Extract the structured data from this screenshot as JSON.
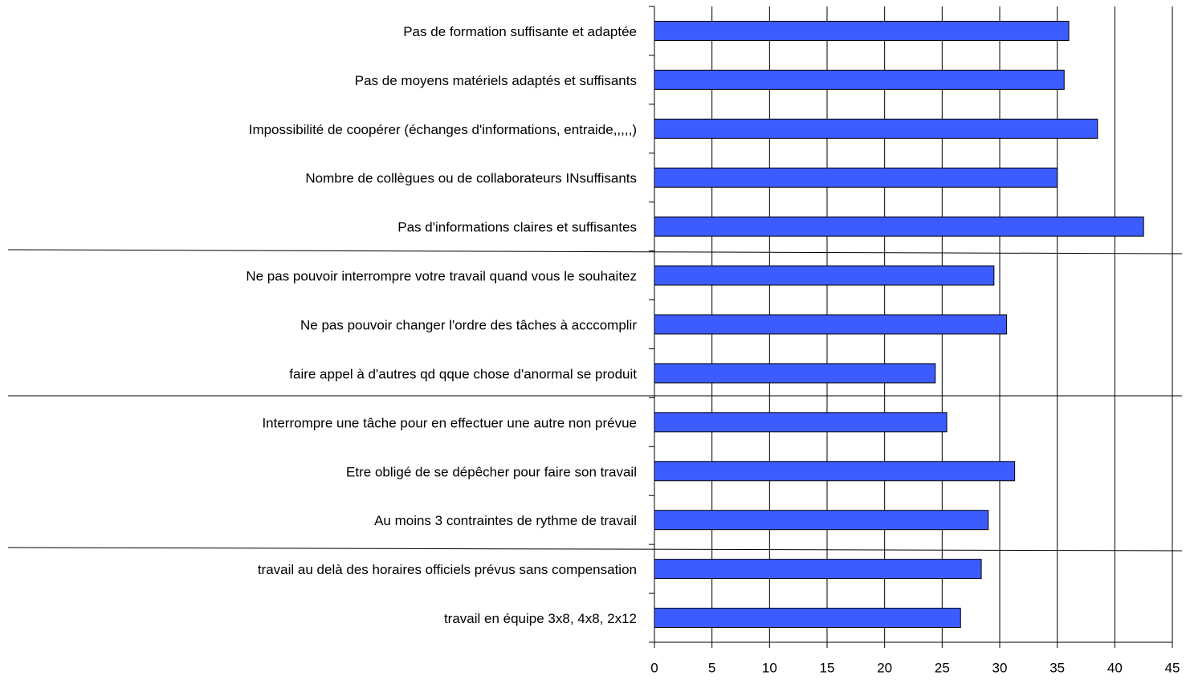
{
  "chart_data": {
    "type": "bar",
    "orientation": "horizontal",
    "categories": [
      "Pas de formation suffisante et adaptée",
      "Pas de moyens matériels adaptés et suffisants",
      "Impossibilité de coopérer (échanges d'informations, entraide,,,,,)",
      "Nombre de collègues ou de collaborateurs INsuffisants",
      "Pas d'informations claires et suffisantes",
      "Ne pas pouvoir interrompre votre travail quand vous le souhaitez",
      "Ne pas pouvoir changer l'ordre des tâches à acccomplir",
      "faire appel à d'autres qd qque chose d'anormal se produit",
      "Interrompre une tâche pour en effectuer une autre non prévue",
      "Etre obligé de se dépêcher pour faire son travail",
      "Au moins 3 contraintes de rythme de travail",
      "travail au delà des horaires officiels prévus sans compensation",
      "travail en équipe 3x8, 4x8, 2x12"
    ],
    "values": [
      36,
      35.6,
      38.5,
      35,
      42.5,
      29.5,
      30.6,
      24.4,
      25.4,
      31.3,
      29,
      28.4,
      26.6
    ],
    "color": "#3d5cff",
    "xlim": [
      0,
      45
    ],
    "xticks": [
      0,
      5,
      10,
      15,
      20,
      25,
      30,
      35,
      40,
      45
    ],
    "grid": true
  }
}
